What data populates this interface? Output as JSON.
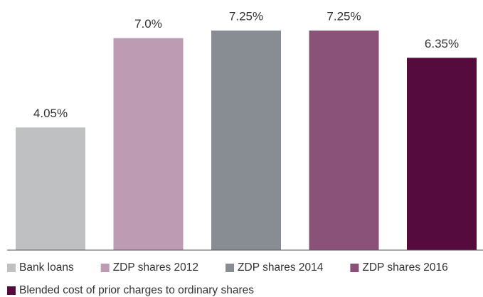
{
  "chart_data": {
    "type": "bar",
    "categories": [
      null
    ],
    "series": [
      {
        "name": "Bank loans",
        "color": "#bfc0c2",
        "values": [
          4.05
        ],
        "value_labels": [
          "4.05%"
        ]
      },
      {
        "name": "ZDP shares 2012",
        "color": "#bd9bb3",
        "values": [
          7.0
        ],
        "value_labels": [
          "7.0%"
        ]
      },
      {
        "name": "ZDP shares 2014",
        "color": "#878d92",
        "values": [
          7.25
        ],
        "value_labels": [
          "7.25%"
        ]
      },
      {
        "name": "ZDP shares 2016",
        "color": "#8a5179",
        "values": [
          7.25
        ],
        "value_labels": [
          "7.25%"
        ]
      },
      {
        "name": "Blended cost of prior charges to ordinary shares",
        "color": "#560b3e",
        "values": [
          6.35
        ],
        "value_labels": [
          "6.35%"
        ]
      }
    ],
    "legend": "bottom"
  }
}
